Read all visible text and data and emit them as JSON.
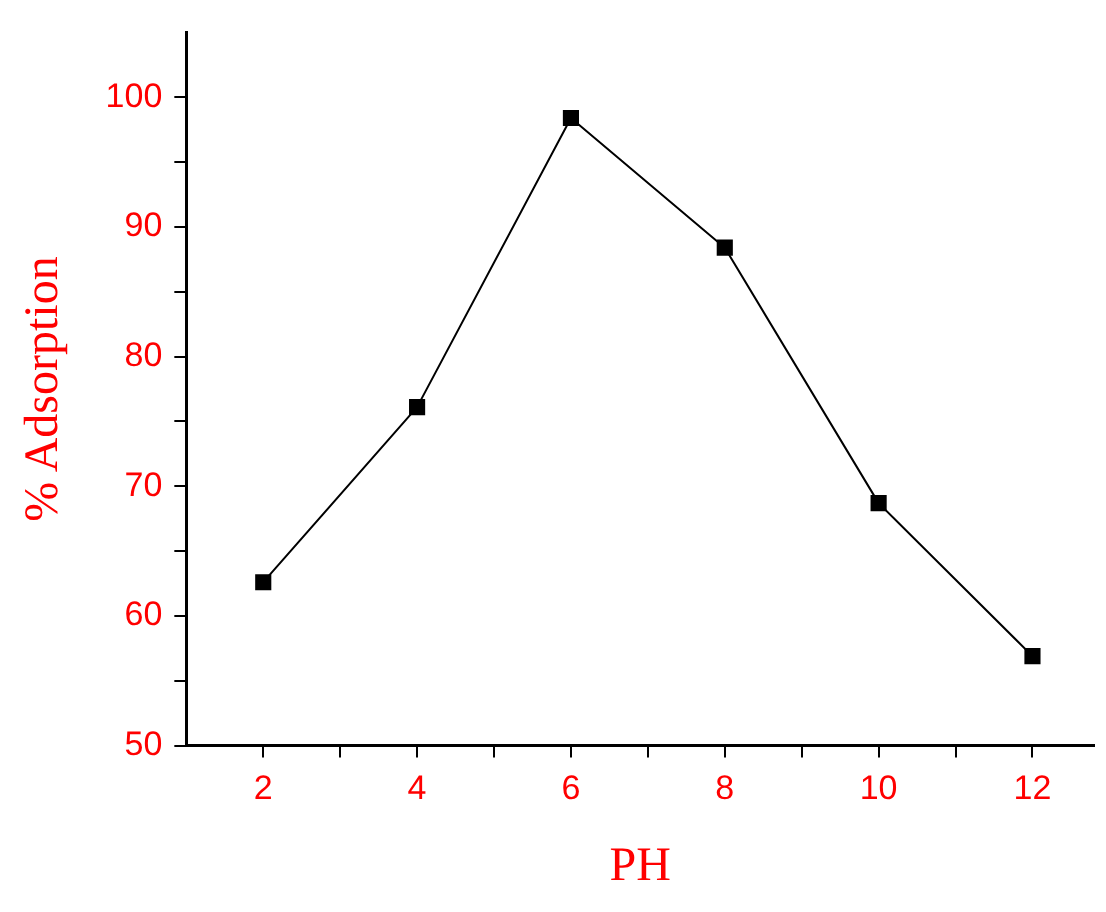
{
  "chart_data": {
    "type": "line",
    "xlabel": "PH",
    "ylabel": "% Adsorption",
    "x": [
      2,
      4,
      6,
      8,
      10,
      12
    ],
    "series": [
      {
        "color": "#000000",
        "values": [
          62.6,
          76.1,
          98.4,
          88.4,
          68.7,
          56.9
        ]
      }
    ],
    "xlim": [
      1,
      12.8
    ],
    "ylim": [
      50,
      105
    ],
    "xticks": [
      2,
      {
        "value": 3,
        "label": null
      },
      4,
      {
        "value": 5,
        "label": null
      },
      6,
      {
        "value": 7,
        "label": null
      },
      8,
      {
        "value": 9,
        "label": null
      },
      10,
      {
        "value": 11,
        "label": null
      },
      12
    ],
    "yticks": [
      50,
      {
        "value": 55,
        "label": null
      },
      60,
      {
        "value": 65,
        "label": null
      },
      70,
      {
        "value": 75,
        "label": null
      },
      80,
      {
        "value": 85,
        "label": null
      },
      90,
      {
        "value": 95,
        "label": null
      },
      100
    ],
    "marker": "square",
    "line_style": "solid",
    "grid": false,
    "legend": false
  }
}
